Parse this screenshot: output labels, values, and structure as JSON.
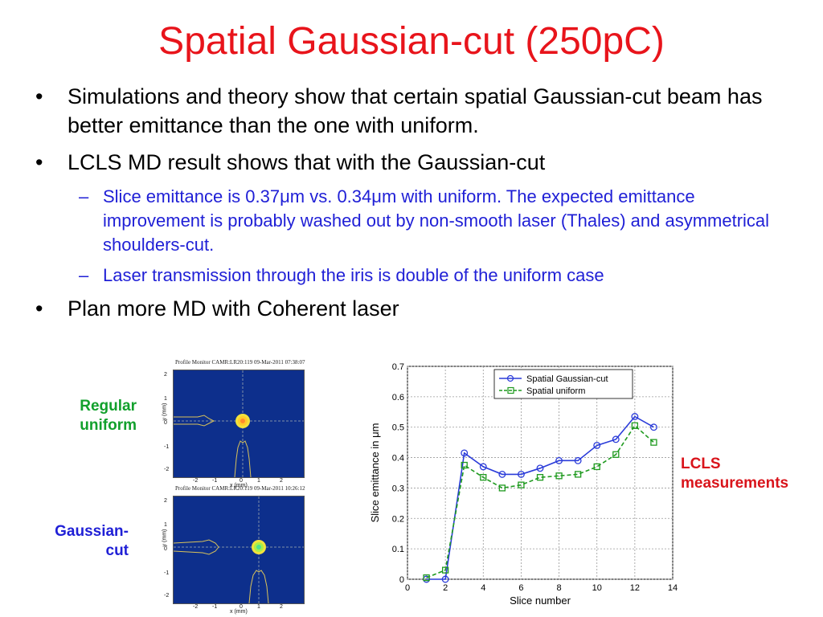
{
  "slide": {
    "title": "Spatial Gaussian-cut (250pC)",
    "bullets": [
      "Simulations and theory show that certain spatial Gaussian-cut beam has better emittance than the one with uniform.",
      "LCLS MD result shows that with the Gaussian-cut",
      "Plan more MD with Coherent laser"
    ],
    "sub_bullets": [
      "Slice emittance is 0.37μm vs. 0.34μm with uniform. The expected emittance improvement  is probably washed out by non-smooth laser (Thales) and asymmetrical shoulders-cut.",
      "Laser transmission through the iris is double of the uniform case"
    ],
    "bullet_symbol": "•",
    "dash_symbol": "–",
    "labels": {
      "regular": "Regular uniform",
      "gaussian": "Gaussian-cut",
      "lcls": "LCLS measurements"
    },
    "colors": {
      "title": "#e8141b",
      "sub_bullets": "#1f1fd6",
      "regular_label": "#12a02c",
      "gaussian_label": "#1f1fd6",
      "lcls_label": "#d9141b"
    }
  },
  "profile_monitors": [
    {
      "caption": "Profile Monitor CAMR:LR20:119 09-Mar-2011 07:38:07",
      "y_ticks": [
        "2",
        "1",
        "0",
        "-1",
        "-2"
      ],
      "x_ticks": [
        "-2",
        "-1",
        "0",
        "1",
        "2"
      ],
      "ylabel": "y (mm)",
      "xlabel": "x (mm)"
    },
    {
      "caption": "Profile Monitor CAMR:LR20:119 09-Mar-2011 10:26:12",
      "y_ticks": [
        "2",
        "1",
        "0",
        "-1",
        "-2"
      ],
      "x_ticks": [
        "-2",
        "-1",
        "0",
        "1",
        "2"
      ],
      "ylabel": "y (mm)",
      "xlabel": "x (mm)"
    }
  ],
  "chart_data": {
    "type": "line",
    "xlabel": "Slice number",
    "ylabel": "Slice emittance in μm",
    "xlim": [
      0,
      14
    ],
    "ylim": [
      0,
      0.7
    ],
    "x_ticks": [
      0,
      2,
      4,
      6,
      8,
      10,
      12,
      14
    ],
    "y_ticks": [
      0,
      0.1,
      0.2,
      0.3,
      0.4,
      0.5,
      0.6,
      0.7
    ],
    "grid": true,
    "legend_position": "top",
    "series": [
      {
        "name": "Spatial Gaussian-cut",
        "color": "#2a3bd9",
        "marker": "circle",
        "line": "solid",
        "x": [
          1,
          2,
          3,
          4,
          5,
          6,
          7,
          8,
          9,
          10,
          11,
          12,
          13
        ],
        "y": [
          0.0,
          0.0,
          0.415,
          0.37,
          0.345,
          0.345,
          0.365,
          0.39,
          0.39,
          0.44,
          0.46,
          0.535,
          0.5
        ]
      },
      {
        "name": "Spatial uniform",
        "color": "#1f9a1f",
        "marker": "square",
        "line": "dashed",
        "x": [
          1,
          2,
          3,
          4,
          5,
          6,
          7,
          8,
          9,
          10,
          11,
          12,
          13
        ],
        "y": [
          0.005,
          0.03,
          0.375,
          0.335,
          0.3,
          0.31,
          0.335,
          0.34,
          0.345,
          0.37,
          0.41,
          0.505,
          0.45
        ]
      }
    ]
  }
}
